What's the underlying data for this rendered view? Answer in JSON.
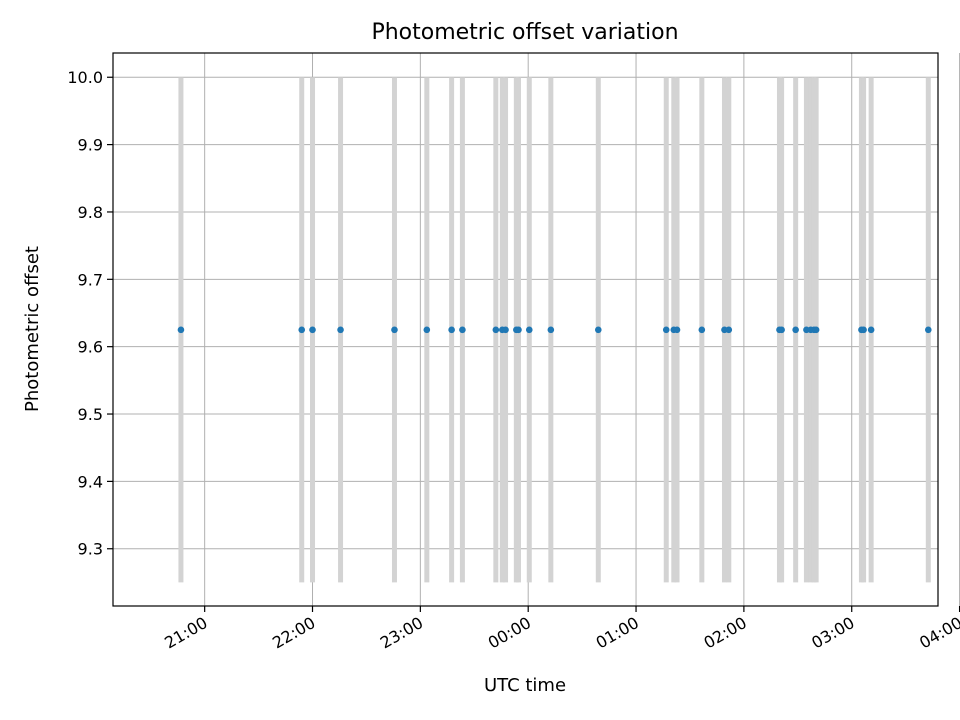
{
  "chart_data": {
    "type": "scatter",
    "title": "Photometric offset variation",
    "xlabel": "UTC time",
    "ylabel": "Photometric offset",
    "grid": true,
    "legend": "none",
    "x_unit": "hours",
    "xlim": [
      -0.85,
      6.8
    ],
    "ylim": [
      9.215,
      10.036
    ],
    "x_ticks": [
      {
        "label": "21:00",
        "value": 0
      },
      {
        "label": "22:00",
        "value": 1
      },
      {
        "label": "23:00",
        "value": 2
      },
      {
        "label": "00:00",
        "value": 3
      },
      {
        "label": "01:00",
        "value": 4
      },
      {
        "label": "02:00",
        "value": 5
      },
      {
        "label": "03:00",
        "value": 6
      },
      {
        "label": "04:00",
        "value": 7
      }
    ],
    "y_ticks": [
      9.3,
      9.4,
      9.5,
      9.6,
      9.7,
      9.8,
      9.9,
      10.0
    ],
    "y_tick_labels": [
      "9.3",
      "9.4",
      "9.5",
      "9.6",
      "9.7",
      "9.8",
      "9.9",
      "10.0"
    ],
    "band_range": [
      9.25,
      10.0
    ],
    "band_color": "#d3d3d3",
    "point_color": "#1f77b4",
    "points": [
      {
        "x": -0.22,
        "y": 9.625
      },
      {
        "x": 0.9,
        "y": 9.625
      },
      {
        "x": 1.0,
        "y": 9.625
      },
      {
        "x": 1.26,
        "y": 9.625
      },
      {
        "x": 1.76,
        "y": 9.625
      },
      {
        "x": 2.06,
        "y": 9.625
      },
      {
        "x": 2.29,
        "y": 9.625
      },
      {
        "x": 2.39,
        "y": 9.625
      },
      {
        "x": 2.7,
        "y": 9.625
      },
      {
        "x": 2.76,
        "y": 9.625
      },
      {
        "x": 2.79,
        "y": 9.625
      },
      {
        "x": 2.89,
        "y": 9.625
      },
      {
        "x": 2.91,
        "y": 9.625
      },
      {
        "x": 3.01,
        "y": 9.625
      },
      {
        "x": 3.21,
        "y": 9.625
      },
      {
        "x": 3.65,
        "y": 9.625
      },
      {
        "x": 4.28,
        "y": 9.625
      },
      {
        "x": 4.35,
        "y": 9.625
      },
      {
        "x": 4.38,
        "y": 9.625
      },
      {
        "x": 4.61,
        "y": 9.625
      },
      {
        "x": 4.82,
        "y": 9.625
      },
      {
        "x": 4.86,
        "y": 9.625
      },
      {
        "x": 5.33,
        "y": 9.625
      },
      {
        "x": 5.35,
        "y": 9.625
      },
      {
        "x": 5.48,
        "y": 9.625
      },
      {
        "x": 5.58,
        "y": 9.625
      },
      {
        "x": 5.62,
        "y": 9.625
      },
      {
        "x": 5.65,
        "y": 9.625
      },
      {
        "x": 5.67,
        "y": 9.625
      },
      {
        "x": 6.09,
        "y": 9.625
      },
      {
        "x": 6.11,
        "y": 9.625
      },
      {
        "x": 6.18,
        "y": 9.625
      },
      {
        "x": 6.71,
        "y": 9.625
      }
    ]
  }
}
